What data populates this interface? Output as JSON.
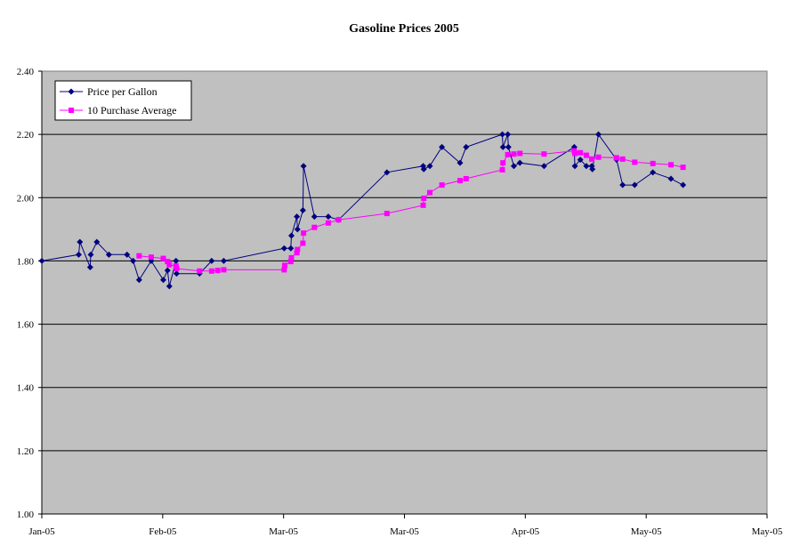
{
  "chart_data": {
    "type": "line",
    "title": "Gasoline Prices 2005",
    "xlabel": "",
    "ylabel": "",
    "ylim": [
      1.0,
      2.4
    ],
    "y_ticks": [
      "1.00",
      "1.20",
      "1.40",
      "1.60",
      "1.80",
      "2.00",
      "2.20",
      "2.40"
    ],
    "x_ticks": [
      "Jan-05",
      "Feb-05",
      "Mar-05",
      "Mar-05",
      "Apr-05",
      "May-05",
      "May-05"
    ],
    "xlim_days": [
      0,
      120
    ],
    "grid": "horizontal",
    "legend_position": "top-left",
    "plot_background": "#c0c0c0",
    "series": [
      {
        "name": "Price per Gallon",
        "color": "#000080",
        "marker": "diamond",
        "points": [
          [
            0,
            1.8
          ],
          [
            6.1,
            1.82
          ],
          [
            6.3,
            1.86
          ],
          [
            8.0,
            1.78
          ],
          [
            8.1,
            1.82
          ],
          [
            9.1,
            1.86
          ],
          [
            11.1,
            1.82
          ],
          [
            14.1,
            1.82
          ],
          [
            15.1,
            1.8
          ],
          [
            16.1,
            1.74
          ],
          [
            18.1,
            1.8
          ],
          [
            20.1,
            1.74
          ],
          [
            20.8,
            1.77
          ],
          [
            21.1,
            1.72
          ],
          [
            22.2,
            1.8
          ],
          [
            22.3,
            1.76
          ],
          [
            26.1,
            1.76
          ],
          [
            28.1,
            1.8
          ],
          [
            30.1,
            1.8
          ],
          [
            40.1,
            1.84
          ],
          [
            41.2,
            1.84
          ],
          [
            41.3,
            1.88
          ],
          [
            42.2,
            1.94
          ],
          [
            42.3,
            1.9
          ],
          [
            43.2,
            1.96
          ],
          [
            43.3,
            2.1
          ],
          [
            45.1,
            1.94
          ],
          [
            47.4,
            1.94
          ],
          [
            49.1,
            1.93
          ],
          [
            57.1,
            2.08
          ],
          [
            63.1,
            2.1
          ],
          [
            63.2,
            2.09
          ],
          [
            64.2,
            2.1
          ],
          [
            66.2,
            2.16
          ],
          [
            69.2,
            2.11
          ],
          [
            70.2,
            2.16
          ],
          [
            76.2,
            2.2
          ],
          [
            76.3,
            2.16
          ],
          [
            77.1,
            2.2
          ],
          [
            77.2,
            2.16
          ],
          [
            78.1,
            2.1
          ],
          [
            79.1,
            2.11
          ],
          [
            83.1,
            2.1
          ],
          [
            88.1,
            2.16
          ],
          [
            88.2,
            2.1
          ],
          [
            89.1,
            2.12
          ],
          [
            90.1,
            2.1
          ],
          [
            91.0,
            2.1
          ],
          [
            91.1,
            2.09
          ],
          [
            92.1,
            2.2
          ],
          [
            95.1,
            2.12
          ],
          [
            96.1,
            2.04
          ],
          [
            98.1,
            2.04
          ],
          [
            101.1,
            2.08
          ],
          [
            104.1,
            2.06
          ],
          [
            106.1,
            2.04
          ]
        ]
      },
      {
        "name": "10 Purchase Average",
        "color": "#ff00ff",
        "marker": "square",
        "points": [
          [
            16.1,
            1.816
          ],
          [
            18.1,
            1.812
          ],
          [
            20.1,
            1.808
          ],
          [
            20.8,
            1.798
          ],
          [
            21.1,
            1.788
          ],
          [
            22.2,
            1.784
          ],
          [
            22.3,
            1.776
          ],
          [
            26.1,
            1.768
          ],
          [
            28.1,
            1.768
          ],
          [
            29.1,
            1.77
          ],
          [
            30.1,
            1.772
          ],
          [
            40.1,
            1.772
          ],
          [
            40.2,
            1.786
          ],
          [
            41.2,
            1.798
          ],
          [
            41.3,
            1.81
          ],
          [
            42.2,
            1.826
          ],
          [
            42.3,
            1.836
          ],
          [
            43.2,
            1.856
          ],
          [
            43.3,
            1.888
          ],
          [
            45.1,
            1.906
          ],
          [
            47.4,
            1.92
          ],
          [
            49.1,
            1.93
          ],
          [
            57.1,
            1.95
          ],
          [
            63.1,
            1.976
          ],
          [
            63.2,
            1.998
          ],
          [
            64.2,
            2.016
          ],
          [
            66.2,
            2.04
          ],
          [
            69.2,
            2.054
          ],
          [
            70.2,
            2.06
          ],
          [
            76.2,
            2.088
          ],
          [
            76.3,
            2.11
          ],
          [
            77.1,
            2.136
          ],
          [
            78.1,
            2.138
          ],
          [
            79.1,
            2.14
          ],
          [
            83.1,
            2.138
          ],
          [
            88.1,
            2.148
          ],
          [
            88.2,
            2.14
          ],
          [
            89.1,
            2.142
          ],
          [
            90.1,
            2.134
          ],
          [
            91.0,
            2.122
          ],
          [
            92.1,
            2.128
          ],
          [
            95.1,
            2.126
          ],
          [
            96.1,
            2.122
          ],
          [
            98.1,
            2.112
          ],
          [
            101.1,
            2.108
          ],
          [
            104.1,
            2.104
          ],
          [
            106.1,
            2.096
          ]
        ]
      }
    ]
  }
}
